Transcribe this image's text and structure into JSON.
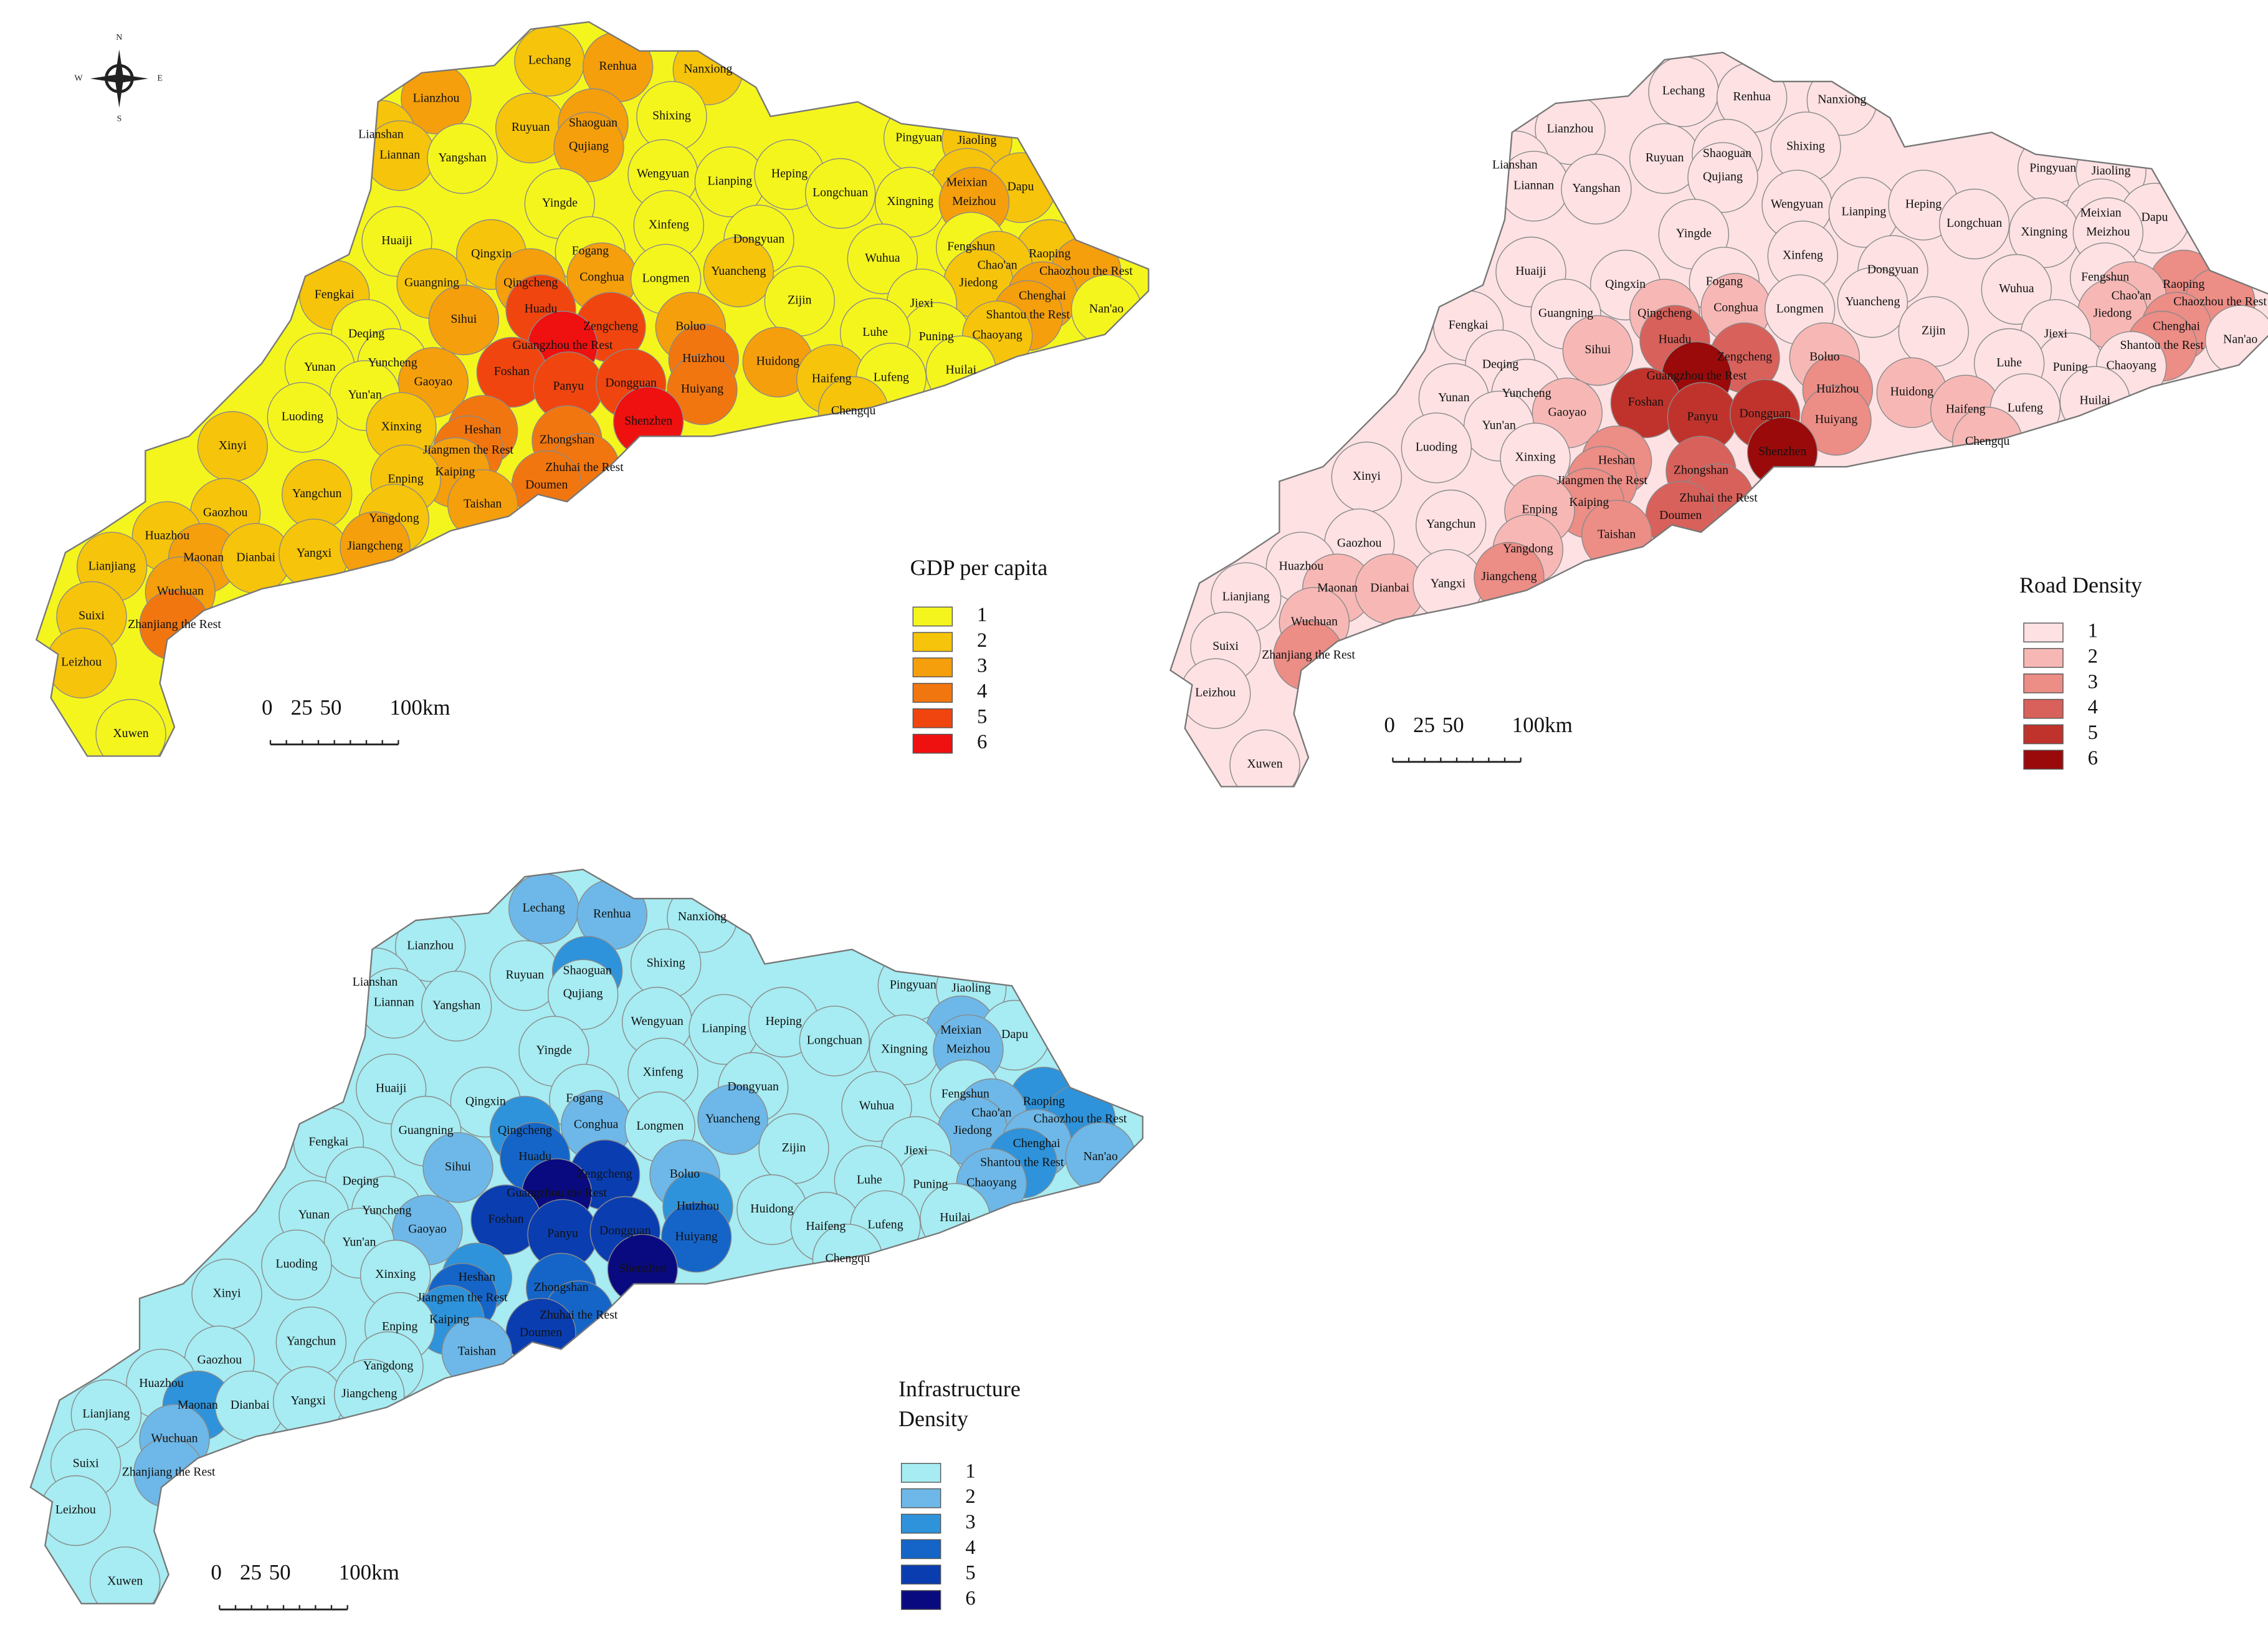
{
  "compass": [
    "N",
    "E",
    "S",
    "W"
  ],
  "places": [
    "Lechang",
    "Renhua",
    "Nanxiong",
    "Lianzhou",
    "Ruyuan",
    "Shaoguan",
    "Shixing",
    "Lianshan",
    "Liannan",
    "Yangshan",
    "Qujiang",
    "Pingyuan",
    "Jiaoling",
    "Wengyuan",
    "Lianping",
    "Heping",
    "Longchuan",
    "Meixian",
    "Dapu",
    "Xingning",
    "Meizhou",
    "Yingde",
    "Huaiji",
    "Xinfeng",
    "Dongyuan",
    "Wuhua",
    "Fengshun",
    "Raoping",
    "Chao'an",
    "Chaozhou the Rest",
    "Qingxin",
    "Fogang",
    "Guangning",
    "Qingcheng",
    "Conghua",
    "Longmen",
    "Yuancheng",
    "Jiedong",
    "Chenghai",
    "Fengkai",
    "Zijin",
    "Jiexi",
    "Shantou the Rest",
    "Nan'ao",
    "Sihui",
    "Huadu",
    "Zengcheng",
    "Boluo",
    "Deqing",
    "Guangzhou the Rest",
    "Puning",
    "Chaoyang",
    "Luhe",
    "Yunan",
    "Yuncheng",
    "Gaoyao",
    "Huizhou",
    "Huidong",
    "Foshan",
    "Panyu",
    "Dongguan",
    "Huiyang",
    "Haifeng",
    "Lufeng",
    "Huilai",
    "Yun'an",
    "Luoding",
    "Shenzhen",
    "Chengqu",
    "Xinxing",
    "Heshan",
    "Xinyi",
    "Zhongshan",
    "Jiangmen the Rest",
    "Kaiping",
    "Zhuhai the Rest",
    "Enping",
    "Doumen",
    "Yangchun",
    "Taishan",
    "Gaozhou",
    "Yangdong",
    "Huazhou",
    "Maonan",
    "Dianbai",
    "Yangxi",
    "Jiangcheng",
    "Lianjiang",
    "Wuchuan",
    "Suixi",
    "Zhanjiang the Rest",
    "Leizhou",
    "Xuwen"
  ],
  "maps": [
    {
      "title": "GDP per capita",
      "scale_labels": [
        "0",
        "25",
        "50",
        "100km"
      ],
      "legend": {
        "classes": [
          1,
          2,
          3,
          4,
          5,
          6
        ],
        "colors": [
          "#f5f51e",
          "#f6c40a",
          "#f59f0c",
          "#f2760f",
          "#f0450f",
          "#ef1010"
        ]
      },
      "region_classes": [
        2,
        3,
        2,
        3,
        2,
        3,
        1,
        2,
        2,
        1,
        3,
        1,
        2,
        1,
        1,
        1,
        1,
        2,
        2,
        1,
        3,
        1,
        1,
        1,
        1,
        1,
        1,
        2,
        2,
        3,
        2,
        1,
        2,
        3,
        3,
        1,
        2,
        2,
        3,
        2,
        1,
        1,
        3,
        1,
        3,
        5,
        5,
        3,
        1,
        6,
        1,
        2,
        1,
        1,
        1,
        3,
        4,
        3,
        5,
        5,
        5,
        4,
        2,
        1,
        1,
        1,
        1,
        6,
        2,
        2,
        4,
        2,
        4,
        4,
        3,
        4,
        2,
        4,
        2,
        3,
        2,
        2,
        2,
        3,
        2,
        2,
        3,
        2,
        3,
        2,
        4,
        2,
        1
      ]
    },
    {
      "title": "Road Density",
      "scale_labels": [
        "0",
        "25",
        "50",
        "100km"
      ],
      "legend": {
        "classes": [
          1,
          2,
          3,
          4,
          5,
          6
        ],
        "colors": [
          "#fde1e3",
          "#f7b8b5",
          "#ec8d86",
          "#d9615b",
          "#c0332c",
          "#9a0a0a"
        ]
      },
      "region_classes": [
        1,
        1,
        1,
        1,
        1,
        1,
        1,
        1,
        1,
        1,
        1,
        1,
        1,
        1,
        1,
        1,
        1,
        1,
        1,
        1,
        1,
        1,
        1,
        1,
        1,
        1,
        1,
        3,
        2,
        3,
        1,
        1,
        1,
        2,
        2,
        1,
        1,
        2,
        3,
        1,
        1,
        1,
        3,
        1,
        2,
        4,
        4,
        2,
        1,
        6,
        1,
        1,
        1,
        1,
        1,
        2,
        3,
        2,
        5,
        5,
        5,
        3,
        2,
        1,
        1,
        1,
        1,
        6,
        2,
        1,
        3,
        1,
        4,
        3,
        3,
        4,
        2,
        4,
        1,
        3,
        1,
        2,
        1,
        2,
        2,
        1,
        3,
        1,
        2,
        1,
        3,
        1,
        1
      ]
    },
    {
      "title": "Infrastructure Density",
      "scale_labels": [
        "0",
        "25",
        "50",
        "100km"
      ],
      "legend": {
        "classes": [
          1,
          2,
          3,
          4,
          5,
          6
        ],
        "colors": [
          "#a6ecf2",
          "#6db8e8",
          "#2e93da",
          "#1565c8",
          "#0a3db0",
          "#0a0a80"
        ]
      },
      "region_classes": [
        2,
        2,
        1,
        1,
        1,
        3,
        1,
        1,
        1,
        1,
        1,
        1,
        1,
        1,
        1,
        1,
        1,
        2,
        1,
        1,
        2,
        1,
        1,
        1,
        1,
        1,
        1,
        3,
        2,
        3,
        1,
        1,
        1,
        3,
        2,
        1,
        2,
        2,
        2,
        1,
        1,
        1,
        3,
        2,
        2,
        4,
        5,
        2,
        1,
        6,
        1,
        2,
        1,
        1,
        1,
        2,
        3,
        1,
        5,
        5,
        5,
        4,
        1,
        1,
        1,
        1,
        1,
        6,
        1,
        1,
        3,
        1,
        4,
        4,
        3,
        4,
        1,
        5,
        1,
        2,
        1,
        1,
        1,
        3,
        1,
        1,
        1,
        1,
        2,
        1,
        2,
        1,
        1
      ]
    }
  ]
}
